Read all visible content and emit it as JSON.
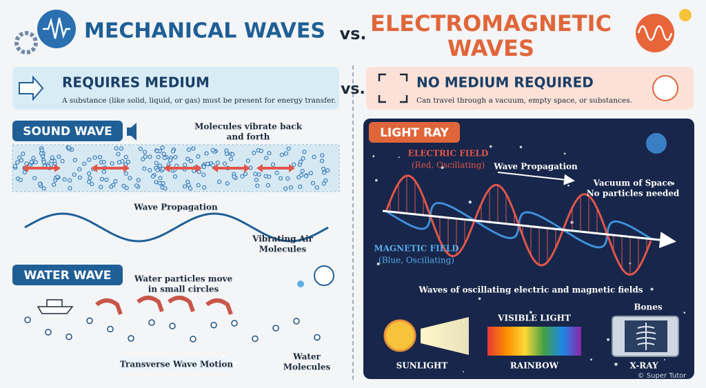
{
  "header": {
    "left_title": "MECHANICAL WAVES",
    "vs": "vs.",
    "right_title": [
      "ELECTROMAGNETIC",
      "WAVES"
    ]
  },
  "left_banner": {
    "title": "REQUIRES MEDIUM",
    "description": "A substance (like solid, liquid, or gas) must be present for energy transfer."
  },
  "middle_vs": "vs.",
  "right_banner": {
    "title": "NO MEDIUM REQUIRED",
    "description": "Can travel through a vacuum, empty space, or substances."
  },
  "sound_wave": {
    "title": "SOUND WAVE",
    "molecules_label": [
      "Molecules vibrate back",
      "and forth"
    ],
    "propagation_label": "Wave Propagation",
    "vibrating_label": [
      "Vibrating Air",
      "Molecules"
    ]
  },
  "water_wave": {
    "title": "WATER WAVE",
    "particles_label": [
      "Water particles move",
      "in small circles"
    ],
    "motion_label": "Transverse Wave Motion",
    "molecules_label": [
      "Water",
      "Molecules"
    ]
  },
  "light_ray": {
    "title": "LIGHT RAY",
    "electric_field": [
      "ELECTRIC FIELD",
      "(Red, Oscillating)"
    ],
    "propagation_label": "Wave Propagation",
    "vacuum_label": [
      "Vacuum of Space",
      "No particles needed"
    ],
    "magnetic_field": [
      "MAGNETIC FIELD",
      "(Blue, Oscillating)"
    ],
    "caption": "Waves of oscillating electric and magnetic fields",
    "visible_light": "VISIBLE LIGHT",
    "bones": "Bones",
    "sunlight": "SUNLIGHT",
    "rainbow": "RAINBOW",
    "xray": "X-RAY"
  },
  "watermark": "© Super Tutor"
}
